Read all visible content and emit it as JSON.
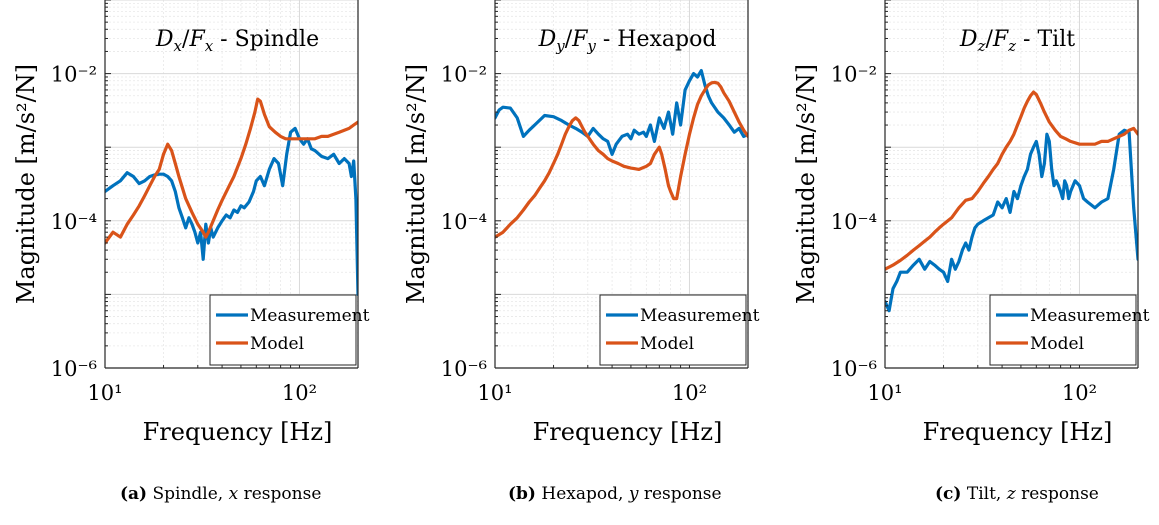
{
  "figure": {
    "ylabel_main": "Magnitude",
    "ylabel_unit": "[m/s²/N]",
    "xlabel": "Frequency [Hz]"
  },
  "captions": [
    {
      "tag": "(a)",
      "text_before": "Spindle,",
      "var": "x",
      "text_after": "response"
    },
    {
      "tag": "(b)",
      "text_before": "Hexapod,",
      "var": "y",
      "text_after": "response"
    },
    {
      "tag": "(c)",
      "text_before": "Tilt,",
      "var": "z",
      "text_after": "response"
    }
  ],
  "chart_data": [
    {
      "type": "line",
      "title": "Dx/Fx - Spindle",
      "title_num": "D",
      "title_num_sub": "x",
      "title_den": "F",
      "title_den_sub": "x",
      "title_suffix": "- Spindle",
      "xlabel": "Frequency [Hz]",
      "ylabel": "Magnitude [m/s²/N]",
      "xscale": "log",
      "yscale": "log",
      "xlim": [
        10,
        200
      ],
      "ylim": [
        1e-06,
        0.1
      ],
      "xticks": [
        10,
        100
      ],
      "yticks": [
        1e-06,
        0.0001,
        0.01
      ],
      "xtick_labels": [
        "10¹",
        "10²"
      ],
      "ytick_labels": [
        "10⁻⁶",
        "10⁻⁴",
        "10⁻²"
      ],
      "grid": true,
      "legend": "bottom-right",
      "series": [
        {
          "name": "Measurement",
          "color": "#0072BD",
          "x": [
            10,
            11,
            12,
            13,
            14,
            15,
            16,
            17,
            18,
            19,
            20,
            21,
            22,
            23,
            24,
            25,
            26,
            27,
            28,
            29,
            30,
            31,
            32,
            33,
            34,
            35,
            36,
            38,
            40,
            42,
            44,
            46,
            48,
            50,
            52,
            55,
            58,
            60,
            63,
            66,
            70,
            74,
            78,
            82,
            86,
            90,
            95,
            100,
            105,
            110,
            115,
            120,
            130,
            140,
            150,
            160,
            170,
            180,
            185,
            190,
            195,
            200
          ],
          "y": [
            0.00025,
            0.0003,
            0.00035,
            0.00045,
            0.0004,
            0.00032,
            0.00035,
            0.0004,
            0.00042,
            0.00043,
            0.00043,
            0.0004,
            0.00035,
            0.00025,
            0.00015,
            0.00011,
            8e-05,
            0.00011,
            9e-05,
            7e-05,
            5e-05,
            7e-05,
            3e-05,
            9e-05,
            5e-05,
            8e-05,
            6e-05,
            8e-05,
            0.0001,
            0.00012,
            0.00011,
            0.00014,
            0.00013,
            0.00016,
            0.00015,
            0.00018,
            0.00025,
            0.00035,
            0.0004,
            0.0003,
            0.0005,
            0.0007,
            0.0006,
            0.0003,
            0.0008,
            0.0016,
            0.0018,
            0.0013,
            0.0011,
            0.0013,
            0.00095,
            0.0009,
            0.00075,
            0.0007,
            0.0008,
            0.0006,
            0.0007,
            0.0006,
            0.0004,
            0.00065,
            0.0002,
            1e-05
          ]
        },
        {
          "name": "Model",
          "color": "#D95319",
          "x": [
            10,
            11,
            12,
            13,
            14,
            15,
            16,
            17,
            18,
            19,
            20,
            21,
            22,
            23,
            24,
            25,
            26,
            28,
            30,
            32,
            33,
            34,
            36,
            38,
            40,
            43,
            46,
            50,
            53,
            56,
            59,
            61,
            63,
            66,
            70,
            75,
            80,
            85,
            90,
            95,
            100,
            110,
            120,
            130,
            140,
            150,
            160,
            170,
            180,
            190,
            200
          ],
          "y": [
            5e-05,
            7e-05,
            6e-05,
            9e-05,
            0.00012,
            0.00016,
            0.00022,
            0.0003,
            0.0004,
            0.0005,
            0.0008,
            0.0011,
            0.0009,
            0.0006,
            0.0004,
            0.00028,
            0.0002,
            0.00013,
            9e-05,
            7e-05,
            6e-05,
            7e-05,
            0.0001,
            0.00014,
            0.00019,
            0.00028,
            0.0004,
            0.0007,
            0.0011,
            0.0018,
            0.003,
            0.0045,
            0.0042,
            0.0028,
            0.0019,
            0.0016,
            0.0014,
            0.0013,
            0.0013,
            0.0013,
            0.0013,
            0.0013,
            0.0013,
            0.0014,
            0.0014,
            0.0015,
            0.0016,
            0.0017,
            0.0018,
            0.002,
            0.0022
          ]
        }
      ]
    },
    {
      "type": "line",
      "title": "Dy/Fy - Hexapod",
      "title_num": "D",
      "title_num_sub": "y",
      "title_den": "F",
      "title_den_sub": "y",
      "title_suffix": "- Hexapod",
      "xlabel": "Frequency [Hz]",
      "ylabel": "Magnitude [m/s²/N]",
      "xscale": "log",
      "yscale": "log",
      "xlim": [
        10,
        200
      ],
      "ylim": [
        1e-06,
        0.1
      ],
      "xticks": [
        10,
        100
      ],
      "yticks": [
        1e-06,
        0.0001,
        0.01
      ],
      "xtick_labels": [
        "10¹",
        "10²"
      ],
      "ytick_labels": [
        "10⁻⁶",
        "10⁻⁴",
        "10⁻²"
      ],
      "grid": true,
      "legend": "bottom-right",
      "series": [
        {
          "name": "Measurement",
          "color": "#0072BD",
          "x": [
            10,
            10.5,
            11,
            12,
            13,
            14,
            15,
            16,
            18,
            20,
            22,
            24,
            26,
            28,
            30,
            32,
            34,
            36,
            38,
            40,
            42,
            45,
            48,
            50,
            52,
            55,
            58,
            60,
            63,
            66,
            70,
            74,
            78,
            82,
            86,
            90,
            95,
            100,
            105,
            110,
            115,
            120,
            125,
            130,
            140,
            150,
            160,
            170,
            180,
            190,
            200
          ],
          "y": [
            0.0025,
            0.0032,
            0.0035,
            0.0034,
            0.0025,
            0.0014,
            0.0017,
            0.002,
            0.0027,
            0.0026,
            0.0023,
            0.002,
            0.0018,
            0.0016,
            0.0014,
            0.0018,
            0.0015,
            0.0013,
            0.0012,
            0.0008,
            0.0011,
            0.0014,
            0.0015,
            0.0013,
            0.0017,
            0.0015,
            0.0016,
            0.0014,
            0.002,
            0.0012,
            0.0025,
            0.0018,
            0.003,
            0.0015,
            0.004,
            0.002,
            0.006,
            0.008,
            0.01,
            0.009,
            0.011,
            0.007,
            0.005,
            0.004,
            0.003,
            0.0025,
            0.002,
            0.0016,
            0.0018,
            0.0014,
            0.0015
          ]
        },
        {
          "name": "Model",
          "color": "#D95319",
          "x": [
            10,
            11,
            12,
            13,
            14,
            15,
            16,
            17,
            18,
            19,
            20,
            21,
            22,
            23,
            24,
            25,
            26,
            27,
            28,
            29,
            30,
            32,
            34,
            36,
            38,
            40,
            43,
            46,
            50,
            55,
            60,
            63,
            66,
            68,
            70,
            72,
            75,
            78,
            80,
            83,
            86,
            90,
            95,
            100,
            105,
            110,
            115,
            120,
            125,
            130,
            135,
            140,
            145,
            150,
            160,
            170,
            180,
            190,
            200
          ],
          "y": [
            6e-05,
            7e-05,
            9e-05,
            0.00011,
            0.00014,
            0.00018,
            0.00022,
            0.00028,
            0.00035,
            0.00045,
            0.0006,
            0.0008,
            0.0011,
            0.0015,
            0.0019,
            0.0023,
            0.0025,
            0.0023,
            0.0019,
            0.0016,
            0.0014,
            0.0011,
            0.0009,
            0.0008,
            0.0007,
            0.00065,
            0.0006,
            0.00055,
            0.00052,
            0.0005,
            0.00055,
            0.0006,
            0.0008,
            0.0009,
            0.001,
            0.0008,
            0.0005,
            0.0003,
            0.00025,
            0.0002,
            0.0002,
            0.0004,
            0.0008,
            0.0015,
            0.0025,
            0.0038,
            0.005,
            0.006,
            0.007,
            0.0075,
            0.0076,
            0.0074,
            0.0066,
            0.0055,
            0.0042,
            0.003,
            0.0022,
            0.0017,
            0.0014
          ]
        }
      ]
    },
    {
      "type": "line",
      "title": "Dz/Fz - Tilt",
      "title_num": "D",
      "title_num_sub": "z",
      "title_den": "F",
      "title_den_sub": "z",
      "title_suffix": "- Tilt",
      "xlabel": "Frequency [Hz]",
      "ylabel": "Magnitude [m/s²/N]",
      "xscale": "log",
      "yscale": "log",
      "xlim": [
        10,
        200
      ],
      "ylim": [
        1e-06,
        0.1
      ],
      "xticks": [
        10,
        100
      ],
      "yticks": [
        1e-06,
        0.0001,
        0.01
      ],
      "xtick_labels": [
        "10¹",
        "10²"
      ],
      "ytick_labels": [
        "10⁻⁶",
        "10⁻⁴",
        "10⁻²"
      ],
      "grid": true,
      "legend": "bottom-right",
      "series": [
        {
          "name": "Measurement",
          "color": "#0072BD",
          "x": [
            10,
            10.5,
            11,
            11.5,
            12,
            13,
            14,
            15,
            16,
            17,
            18,
            19,
            20,
            21,
            22,
            23,
            24,
            25,
            26,
            27,
            28,
            29,
            30,
            32,
            34,
            36,
            38,
            40,
            42,
            44,
            46,
            48,
            50,
            52,
            54,
            56,
            58,
            60,
            62,
            64,
            66,
            68,
            70,
            72,
            74,
            76,
            78,
            80,
            82,
            84,
            86,
            88,
            90,
            95,
            100,
            105,
            110,
            120,
            130,
            140,
            150,
            160,
            170,
            180,
            190,
            200
          ],
          "y": [
            8e-06,
            6e-06,
            1.2e-05,
            1.5e-05,
            2e-05,
            2e-05,
            2.5e-05,
            3e-05,
            2.2e-05,
            2.8e-05,
            2.5e-05,
            2.2e-05,
            2e-05,
            1.5e-05,
            3e-05,
            2.2e-05,
            2.8e-05,
            4e-05,
            5e-05,
            4e-05,
            6e-05,
            8e-05,
            9e-05,
            0.0001,
            0.00011,
            0.00012,
            0.00018,
            0.00015,
            0.0002,
            0.00013,
            0.00025,
            0.0002,
            0.0003,
            0.0004,
            0.0005,
            0.0008,
            0.001,
            0.0012,
            0.0008,
            0.0004,
            0.0006,
            0.0015,
            0.0012,
            0.0005,
            0.0003,
            0.00035,
            0.0003,
            0.00025,
            0.0002,
            0.00035,
            0.0003,
            0.0002,
            0.00025,
            0.00035,
            0.0003,
            0.0002,
            0.00018,
            0.00015,
            0.00018,
            0.0002,
            0.0005,
            0.0015,
            0.0017,
            0.0016,
            0.00015,
            3e-05
          ]
        },
        {
          "name": "Model",
          "color": "#D95319",
          "x": [
            10,
            11,
            12,
            13,
            14,
            15,
            16,
            17,
            18,
            19,
            20,
            22,
            24,
            26,
            28,
            30,
            32,
            34,
            36,
            38,
            40,
            42,
            44,
            46,
            48,
            50,
            52,
            54,
            56,
            58,
            60,
            63,
            66,
            70,
            75,
            80,
            85,
            90,
            100,
            110,
            120,
            130,
            140,
            150,
            160,
            170,
            180,
            190,
            200
          ],
          "y": [
            2.2e-05,
            2.5e-05,
            2.9e-05,
            3.4e-05,
            4e-05,
            4.6e-05,
            5.3e-05,
            6e-05,
            7e-05,
            8e-05,
            9e-05,
            0.00011,
            0.00015,
            0.00019,
            0.0002,
            0.00025,
            0.00032,
            0.0004,
            0.0005,
            0.0006,
            0.0008,
            0.001,
            0.0012,
            0.0015,
            0.002,
            0.0026,
            0.0034,
            0.0042,
            0.005,
            0.0056,
            0.0052,
            0.004,
            0.003,
            0.0022,
            0.0017,
            0.0014,
            0.0013,
            0.0012,
            0.0011,
            0.0011,
            0.0011,
            0.0012,
            0.0012,
            0.0013,
            0.0014,
            0.0015,
            0.0017,
            0.0018,
            0.0015
          ]
        }
      ]
    }
  ]
}
